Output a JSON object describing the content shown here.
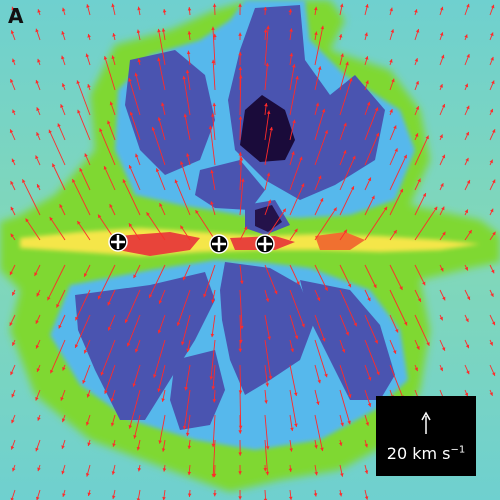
{
  "panel": {
    "label": "A"
  },
  "scale_bar": {
    "value": "20 km s",
    "exponent": "−1"
  },
  "colors": {
    "background": "#6fd0cf",
    "green": "#7fd832",
    "cyan": "#56b8ec",
    "blue": "#4a54b0",
    "dark": "#24124a",
    "core": "#e8443a",
    "vector": "#ff2a2a",
    "scale_box": "#000000",
    "scale_text": "#ffffff"
  },
  "icons": {
    "star_marker": "plus-in-circle"
  }
}
